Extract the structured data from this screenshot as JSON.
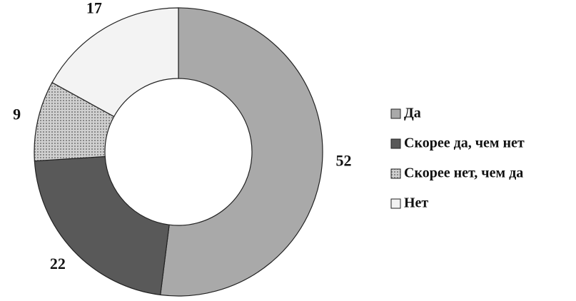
{
  "chart_data": {
    "type": "donut",
    "categories": [
      "Да",
      "Скорее да, чем нет",
      "Скорее нет, чем да",
      "Нет"
    ],
    "values": [
      52,
      22,
      9,
      17
    ],
    "colors": [
      "#a9a9a9",
      "#595959",
      "#c4c4c4",
      "#f3f3f3"
    ],
    "legend": "right"
  }
}
